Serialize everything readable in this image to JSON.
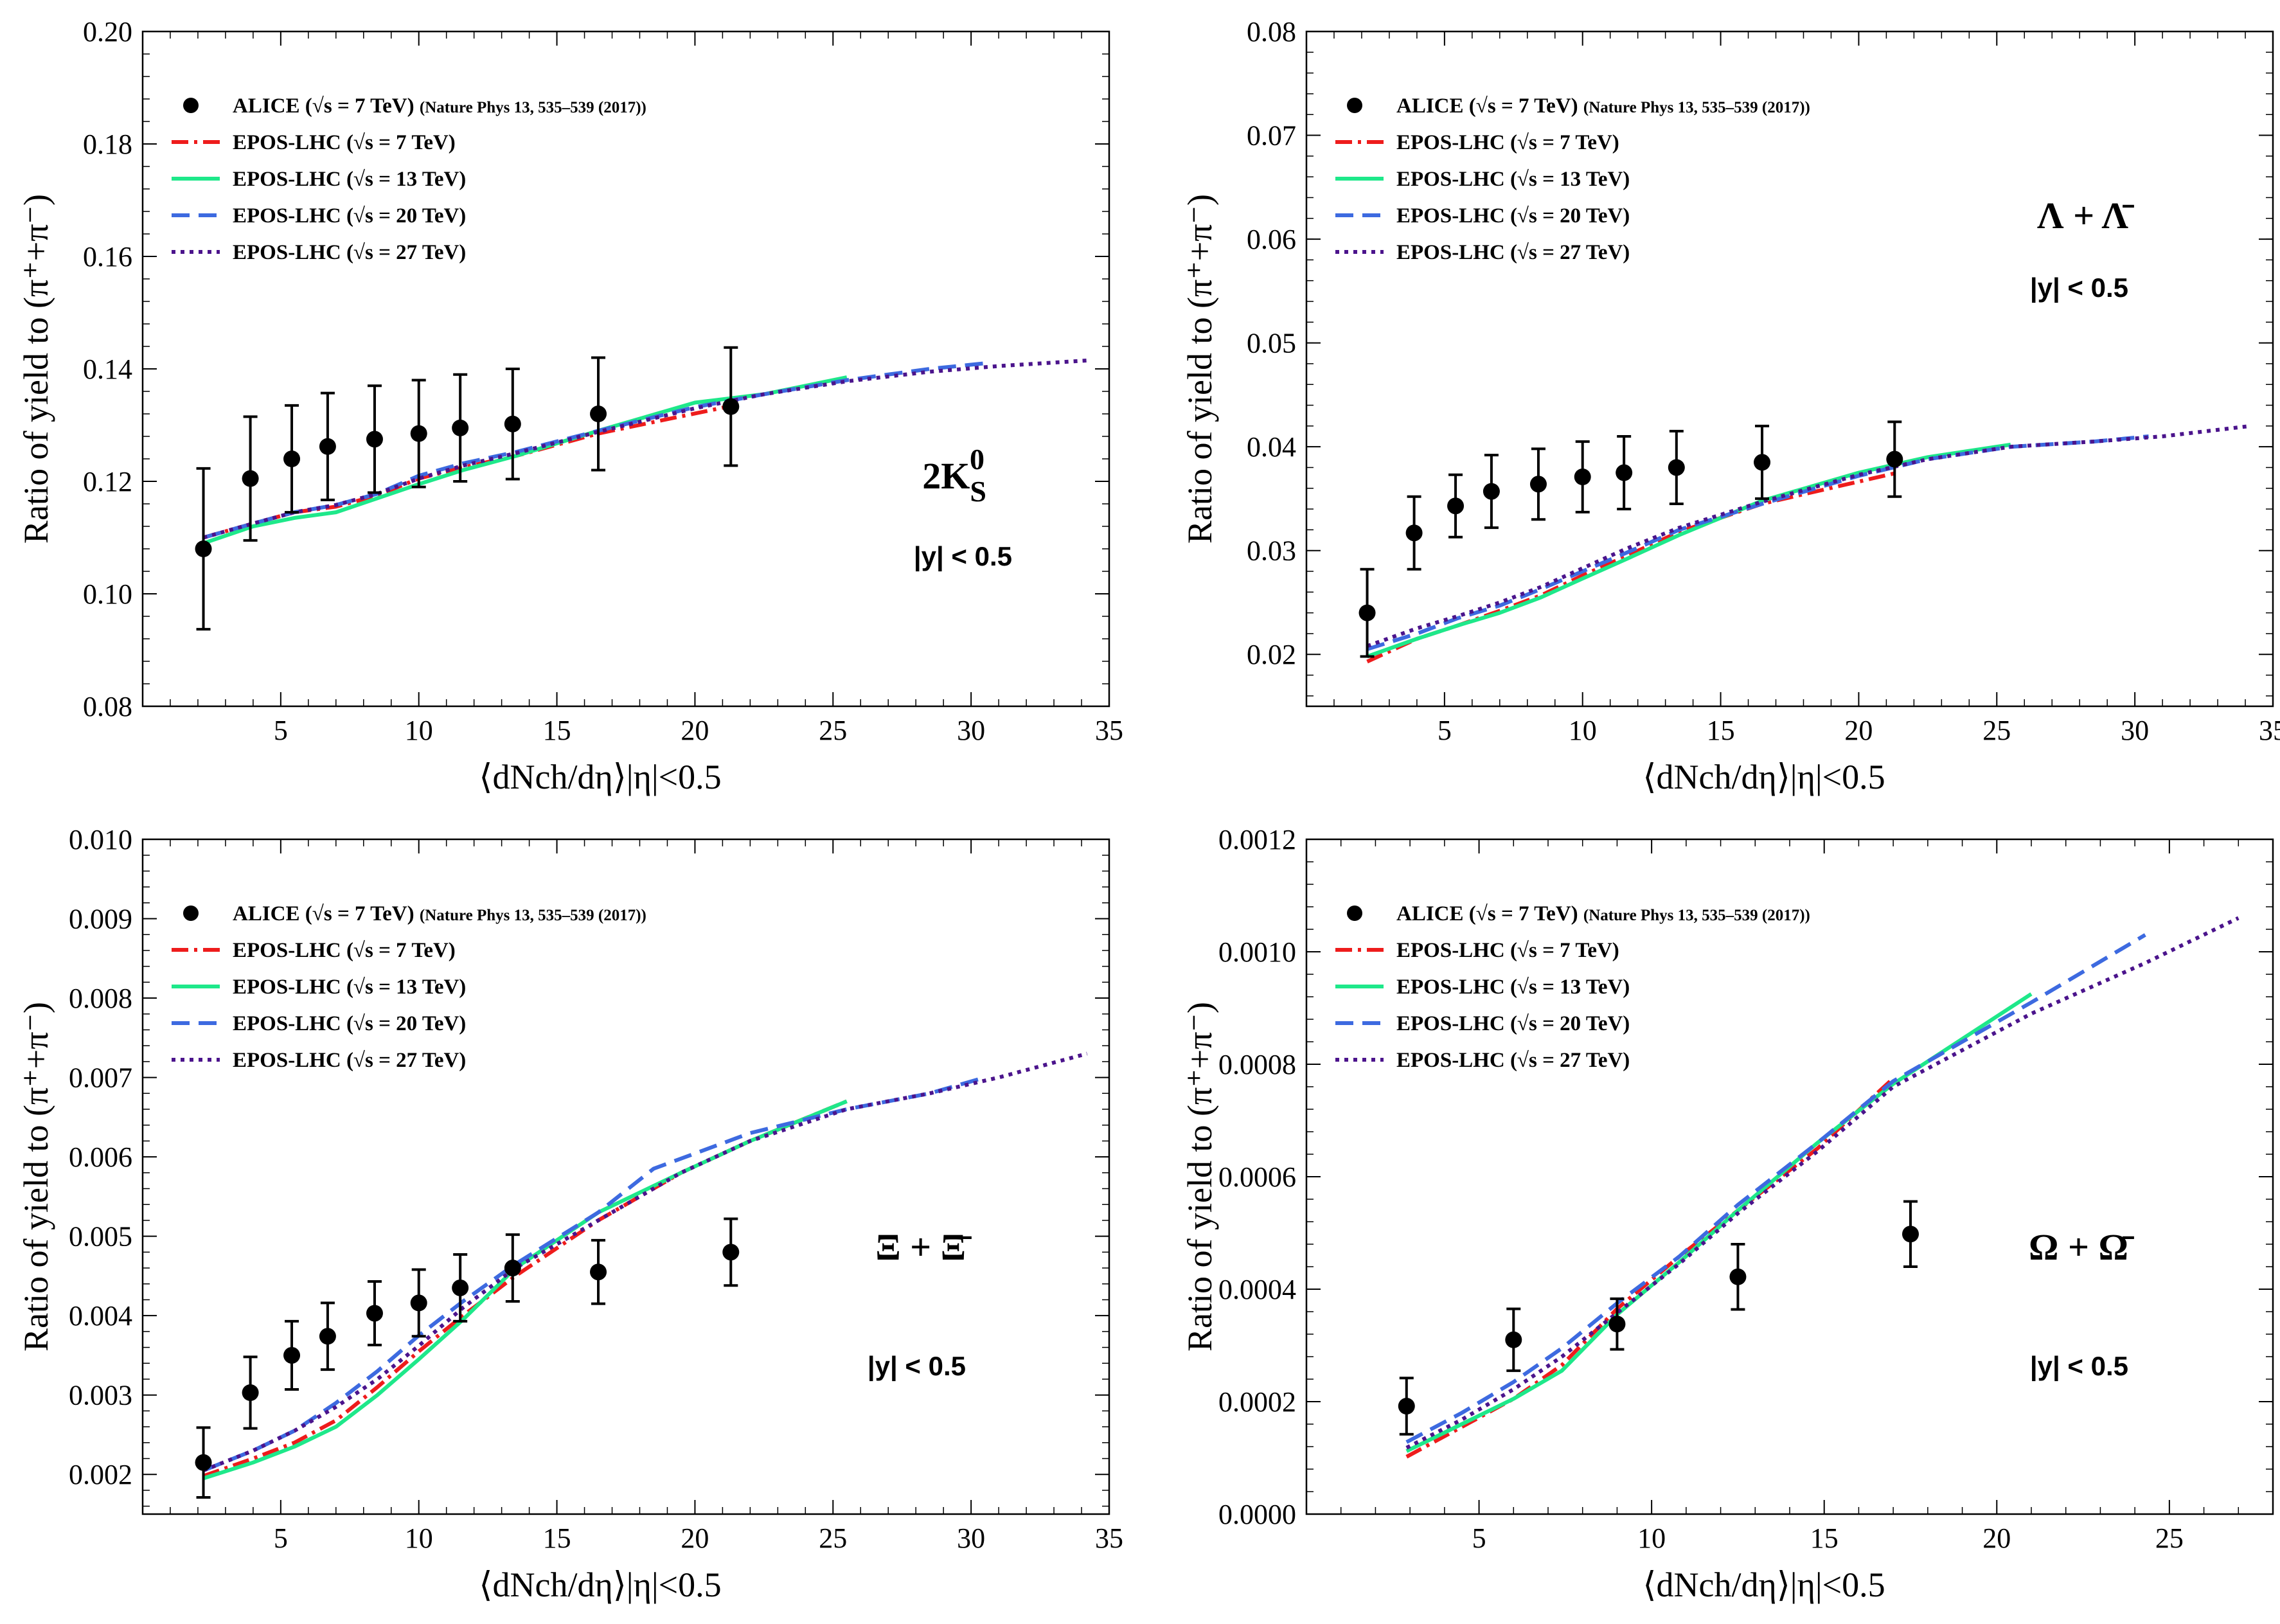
{
  "figure": {
    "legend_labels": [
      "ALICE (√s = 7 TeV) (Nature Phys 13, 535–539 (2017))",
      "EPOS-LHC (√s = 7 TeV)",
      "EPOS-LHC (√s = 13 TeV)",
      "EPOS-LHC (√s = 20 TeV)",
      "EPOS-LHC (√s = 27 TeV)"
    ],
    "series_colors": {
      "ALICE": "#000000",
      "EPOS-LHC 7 TeV": "#ee1c1c",
      "EPOS-LHC 13 TeV": "#1ee88a",
      "EPOS-LHC 20 TeV": "#3d6ae0",
      "EPOS-LHC 27 TeV": "#4b148c"
    },
    "xlabel_text": "⟨dNch/dη⟩|η|<0.5",
    "ylabel_text": "Ratio of yield to (π⁺+π⁻)"
  },
  "chart_data": [
    {
      "type": "line",
      "panel": "top-left",
      "title": "2K_S^0",
      "particle_label": "2K",
      "particle_sub": "S",
      "particle_sup": "0",
      "rapidity": "|y| < 0.5",
      "xlabel": "⟨dNch/dη⟩|η|<0.5",
      "ylabel": "Ratio of yield to (π⁺+π⁻)",
      "xlim": [
        0,
        35
      ],
      "ylim": [
        0.08,
        0.2
      ],
      "xticks": [
        5,
        10,
        15,
        20,
        25,
        30,
        35
      ],
      "xtick_labels": [
        "5",
        "10",
        "15",
        "20",
        "25",
        "30",
        "35"
      ],
      "yticks": [
        0.08,
        0.1,
        0.12,
        0.14,
        0.16,
        0.18,
        0.2
      ],
      "ytick_labels": [
        "0.08",
        "0.10",
        "0.12",
        "0.14",
        "0.16",
        "0.18",
        "0.20"
      ],
      "alice": {
        "x": [
          2.2,
          3.9,
          5.4,
          6.7,
          8.4,
          10.0,
          11.5,
          13.4,
          16.5,
          21.3
        ],
        "y": [
          0.108,
          0.1205,
          0.124,
          0.1262,
          0.1275,
          0.1285,
          0.1295,
          0.1302,
          0.132,
          0.1333
        ],
        "err": [
          0.0143,
          0.011,
          0.0095,
          0.0095,
          0.0095,
          0.0095,
          0.0095,
          0.0098,
          0.01,
          0.0105
        ]
      },
      "series": [
        {
          "name": "EPOS-LHC (√s = 7 TeV)",
          "x": [
            2.2,
            4.0,
            5.5,
            7.0,
            8.5,
            10.0,
            11.6,
            13.5,
            16.5,
            21.4
          ],
          "y": [
            0.11,
            0.1125,
            0.1145,
            0.1155,
            0.1175,
            0.1205,
            0.1225,
            0.1245,
            0.1285,
            0.1335
          ]
        },
        {
          "name": "EPOS-LHC (√s = 13 TeV)",
          "x": [
            2.2,
            4.0,
            5.5,
            7.0,
            8.5,
            10.0,
            11.6,
            13.5,
            16.5,
            20.0,
            22.5,
            25.5
          ],
          "y": [
            0.109,
            0.112,
            0.1135,
            0.1145,
            0.117,
            0.1195,
            0.122,
            0.1245,
            0.129,
            0.134,
            0.1355,
            0.1385
          ]
        },
        {
          "name": "EPOS-LHC (√s = 20 TeV)",
          "x": [
            2.2,
            4.0,
            5.5,
            7.0,
            8.5,
            10.0,
            11.6,
            13.5,
            16.5,
            20.0,
            22.5,
            25.5,
            28.5,
            30.5
          ],
          "y": [
            0.11,
            0.1125,
            0.1145,
            0.1158,
            0.1178,
            0.121,
            0.1232,
            0.1252,
            0.129,
            0.1332,
            0.1355,
            0.138,
            0.14,
            0.141
          ]
        },
        {
          "name": "EPOS-LHC (√s = 27 TeV)",
          "x": [
            2.2,
            4.0,
            5.5,
            7.0,
            8.5,
            10.0,
            11.6,
            13.5,
            16.5,
            20.0,
            22.5,
            25.5,
            28.5,
            31.0,
            34.2
          ],
          "y": [
            0.11,
            0.1125,
            0.1145,
            0.1158,
            0.1178,
            0.1205,
            0.1228,
            0.125,
            0.1288,
            0.133,
            0.1355,
            0.1378,
            0.1395,
            0.1405,
            0.1415
          ]
        }
      ]
    },
    {
      "type": "line",
      "panel": "top-right",
      "title": "Λ + Λ̄",
      "particle_label": "Λ + Λ̄",
      "rapidity": "|y| < 0.5",
      "xlabel": "⟨dNch/dη⟩|η|<0.5",
      "ylabel": "Ratio of yield to (π⁺+π⁻)",
      "xlim": [
        0,
        35
      ],
      "ylim": [
        0.015,
        0.08
      ],
      "xticks": [
        5,
        10,
        15,
        20,
        25,
        30,
        35
      ],
      "xtick_labels": [
        "5",
        "10",
        "15",
        "20",
        "25",
        "30",
        "35"
      ],
      "yticks": [
        0.02,
        0.03,
        0.04,
        0.05,
        0.06,
        0.07,
        0.08
      ],
      "ytick_labels": [
        "0.02",
        "0.03",
        "0.04",
        "0.05",
        "0.06",
        "0.07",
        "0.08"
      ],
      "alice": {
        "x": [
          2.2,
          3.9,
          5.4,
          6.7,
          8.4,
          10.0,
          11.5,
          13.4,
          16.5,
          21.3
        ],
        "y": [
          0.024,
          0.0317,
          0.0343,
          0.0357,
          0.0364,
          0.0371,
          0.0375,
          0.038,
          0.0385,
          0.0388
        ],
        "err": [
          0.0042,
          0.0035,
          0.003,
          0.0035,
          0.0034,
          0.0034,
          0.0035,
          0.0035,
          0.0035,
          0.0036
        ]
      },
      "series": [
        {
          "name": "EPOS-LHC (√s = 7 TeV)",
          "x": [
            2.2,
            4.0,
            5.5,
            7.0,
            8.5,
            10.0,
            11.6,
            13.5,
            16.5,
            21.4
          ],
          "y": [
            0.0193,
            0.0215,
            0.0228,
            0.0242,
            0.0257,
            0.0276,
            0.0295,
            0.0318,
            0.0345,
            0.0375
          ]
        },
        {
          "name": "EPOS-LHC (√s = 13 TeV)",
          "x": [
            2.2,
            4.0,
            5.5,
            7.0,
            8.5,
            10.0,
            11.6,
            13.5,
            16.5,
            20.0,
            22.5,
            25.5
          ],
          "y": [
            0.0198,
            0.0215,
            0.0228,
            0.024,
            0.0255,
            0.0273,
            0.0292,
            0.0315,
            0.0348,
            0.0375,
            0.039,
            0.0402
          ]
        },
        {
          "name": "EPOS-LHC (√s = 20 TeV)",
          "x": [
            2.2,
            4.0,
            5.5,
            7.0,
            8.5,
            10.0,
            11.6,
            13.5,
            16.5,
            20.0,
            22.5,
            25.5,
            28.5,
            30.5
          ],
          "y": [
            0.0205,
            0.022,
            0.0235,
            0.0247,
            0.0263,
            0.028,
            0.0298,
            0.032,
            0.0345,
            0.0372,
            0.0388,
            0.04,
            0.0405,
            0.041
          ]
        },
        {
          "name": "EPOS-LHC (√s = 27 TeV)",
          "x": [
            2.2,
            4.0,
            5.5,
            7.0,
            8.5,
            10.0,
            11.6,
            13.5,
            16.5,
            20.0,
            22.5,
            25.5,
            28.5,
            31.0,
            34.2
          ],
          "y": [
            0.0208,
            0.0225,
            0.0237,
            0.025,
            0.0265,
            0.0283,
            0.0302,
            0.0322,
            0.0347,
            0.0373,
            0.0388,
            0.04,
            0.0405,
            0.041,
            0.042
          ]
        }
      ]
    },
    {
      "type": "line",
      "panel": "bottom-left",
      "title": "Ξ + Ξ̄",
      "particle_label": "Ξ + Ξ̄",
      "rapidity": "|y| < 0.5",
      "xlabel": "⟨dNch/dη⟩|η|<0.5",
      "ylabel": "Ratio of yield to (π⁺+π⁻)",
      "xlim": [
        0,
        35
      ],
      "ylim": [
        0.0015,
        0.01
      ],
      "xticks": [
        5,
        10,
        15,
        20,
        25,
        30,
        35
      ],
      "xtick_labels": [
        "5",
        "10",
        "15",
        "20",
        "25",
        "30",
        "35"
      ],
      "yticks": [
        0.002,
        0.003,
        0.004,
        0.005,
        0.006,
        0.007,
        0.008,
        0.009,
        0.01
      ],
      "ytick_labels": [
        "0.002",
        "0.003",
        "0.004",
        "0.005",
        "0.006",
        "0.007",
        "0.008",
        "0.009",
        "0.010"
      ],
      "alice": {
        "x": [
          2.2,
          3.9,
          5.4,
          6.7,
          8.4,
          10.0,
          11.5,
          13.4,
          16.5,
          21.3
        ],
        "y": [
          0.00215,
          0.00303,
          0.0035,
          0.00374,
          0.00403,
          0.00416,
          0.00435,
          0.0046,
          0.00455,
          0.0048
        ],
        "err": [
          0.00044,
          0.00045,
          0.00043,
          0.00042,
          0.0004,
          0.00042,
          0.00042,
          0.00042,
          0.0004,
          0.00042
        ]
      },
      "series": [
        {
          "name": "EPOS-LHC (√s = 7 TeV)",
          "x": [
            2.2,
            4.0,
            5.5,
            7.0,
            8.5,
            10.0,
            11.6,
            13.5,
            16.5,
            19.5,
            22.0,
            25.5
          ],
          "y": [
            0.00198,
            0.0022,
            0.0024,
            0.00268,
            0.0031,
            0.00355,
            0.004,
            0.0045,
            0.0052,
            0.0058,
            0.0062,
            0.0067
          ]
        },
        {
          "name": "EPOS-LHC (√s = 13 TeV)",
          "x": [
            2.2,
            4.0,
            5.5,
            7.0,
            8.5,
            10.0,
            11.6,
            13.5,
            16.5,
            19.5,
            22.0,
            25.5
          ],
          "y": [
            0.00195,
            0.00215,
            0.00235,
            0.0026,
            0.003,
            0.00345,
            0.00395,
            0.0046,
            0.0053,
            0.0058,
            0.0062,
            0.0067
          ]
        },
        {
          "name": "EPOS-LHC (√s = 20 TeV)",
          "x": [
            2.2,
            4.0,
            5.5,
            7.0,
            8.5,
            10.0,
            11.6,
            13.5,
            16.5,
            18.5,
            22.0,
            25.5,
            28.5,
            30.5
          ],
          "y": [
            0.00205,
            0.0023,
            0.00255,
            0.0029,
            0.0033,
            0.00375,
            0.00418,
            0.00465,
            0.0053,
            0.00585,
            0.0063,
            0.0066,
            0.0068,
            0.007
          ]
        },
        {
          "name": "EPOS-LHC (√s = 27 TeV)",
          "x": [
            2.2,
            4.0,
            5.5,
            7.0,
            8.5,
            10.0,
            11.6,
            13.5,
            16.5,
            19.5,
            22.0,
            25.5,
            28.5,
            31.0,
            34.2
          ],
          "y": [
            0.00205,
            0.0023,
            0.00255,
            0.00285,
            0.0032,
            0.00362,
            0.0041,
            0.0046,
            0.0052,
            0.0058,
            0.0062,
            0.0066,
            0.0068,
            0.007,
            0.0073
          ]
        }
      ]
    },
    {
      "type": "line",
      "panel": "bottom-right",
      "title": "Ω + Ω̄",
      "particle_label": "Ω + Ω̄",
      "rapidity": "|y| < 0.5",
      "xlabel": "⟨dNch/dη⟩|η|<0.5",
      "ylabel": "Ratio of yield to (π⁺+π⁻)",
      "xlim": [
        0,
        28
      ],
      "ylim": [
        0,
        0.0012
      ],
      "xticks": [
        5,
        10,
        15,
        20,
        25
      ],
      "xtick_labels": [
        "5",
        "10",
        "15",
        "20",
        "25"
      ],
      "yticks": [
        0,
        0.0002,
        0.0004,
        0.0006,
        0.0008,
        0.001,
        0.0012
      ],
      "ytick_labels": [
        "0.0000",
        "0.0002",
        "0.0004",
        "0.0006",
        "0.0008",
        "0.0010",
        "0.0012"
      ],
      "alice": {
        "x": [
          2.9,
          6.0,
          9.0,
          12.5,
          17.5
        ],
        "y": [
          0.000192,
          0.00031,
          0.000338,
          0.000422,
          0.000498
        ],
        "err": [
          5e-05,
          5.5e-05,
          4.5e-05,
          5.8e-05,
          5.8e-05
        ]
      },
      "series": [
        {
          "name": "EPOS-LHC (√s = 7 TeV)",
          "x": [
            2.9,
            4.5,
            6.0,
            7.4,
            9.0,
            10.8,
            12.5,
            14.8,
            17.0
          ],
          "y": [
            0.000102,
            0.000155,
            0.000205,
            0.000265,
            0.000365,
            0.000458,
            0.00054,
            0.00065,
            0.000775
          ]
        },
        {
          "name": "EPOS-LHC (√s = 13 TeV)",
          "x": [
            2.9,
            4.5,
            6.0,
            7.4,
            9.0,
            10.8,
            12.5,
            14.8,
            17.0,
            21.0
          ],
          "y": [
            0.000112,
            0.00016,
            0.000205,
            0.000255,
            0.000355,
            0.000448,
            0.00054,
            0.00066,
            0.000765,
            0.000925
          ]
        },
        {
          "name": "EPOS-LHC (√s = 20 TeV)",
          "x": [
            2.9,
            4.5,
            6.0,
            7.4,
            9.0,
            10.8,
            12.5,
            14.8,
            17.0,
            21.0,
            24.3
          ],
          "y": [
            0.000128,
            0.00018,
            0.000235,
            0.000295,
            0.000375,
            0.000458,
            0.00055,
            0.00066,
            0.00077,
            0.00091,
            0.00103
          ]
        },
        {
          "name": "EPOS-LHC (√s = 27 TeV)",
          "x": [
            2.9,
            4.5,
            6.0,
            7.4,
            9.0,
            10.8,
            12.5,
            14.8,
            17.0,
            21.0,
            24.3,
            27.0
          ],
          "y": [
            0.000118,
            0.000168,
            0.000222,
            0.00028,
            0.000358,
            0.000445,
            0.000535,
            0.000645,
            0.00076,
            0.00089,
            0.00098,
            0.00106
          ]
        }
      ]
    }
  ]
}
